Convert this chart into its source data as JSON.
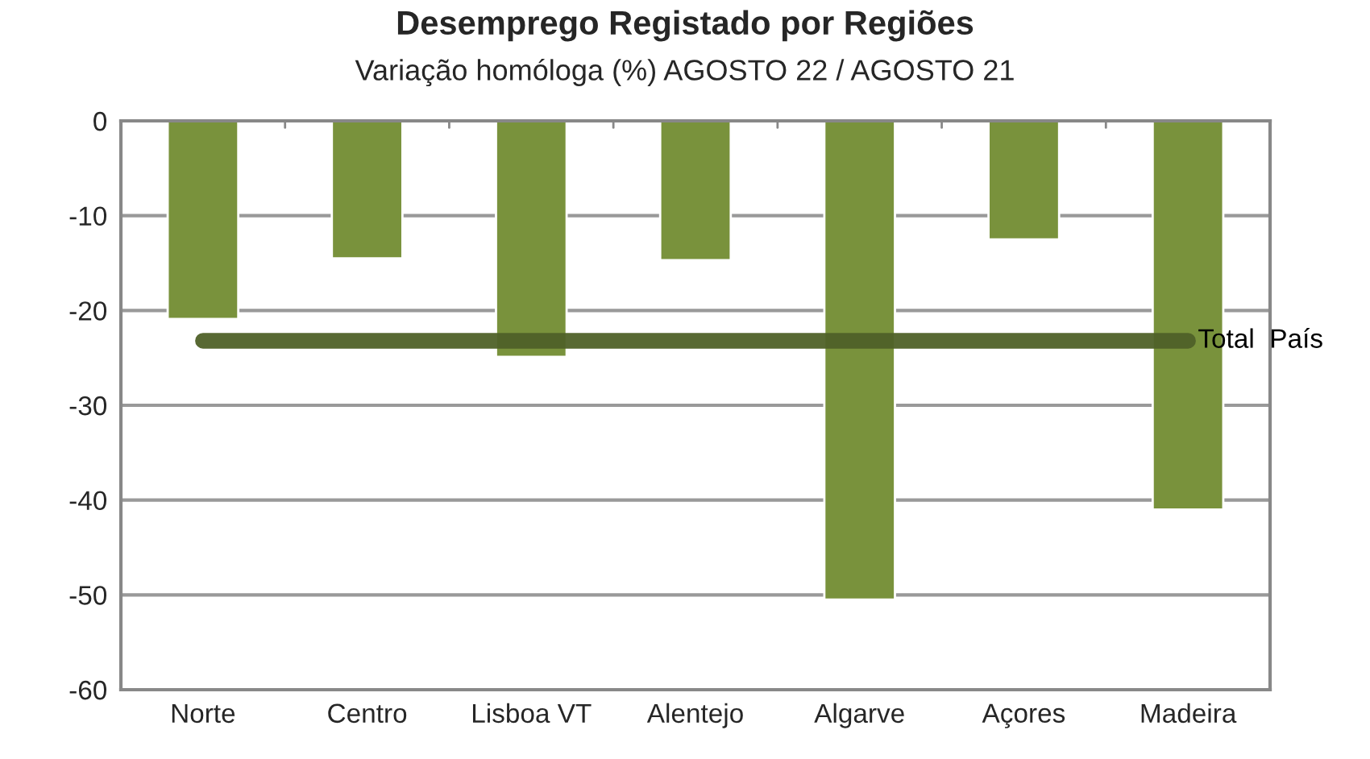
{
  "chart_data": {
    "type": "bar",
    "title": "Desemprego Registado por Regiões",
    "subtitle": "Variação homóloga (%) AGOSTO 22 / AGOSTO 21",
    "categories": [
      "Norte",
      "Centro",
      "Lisboa VT",
      "Alentejo",
      "Algarve",
      "Açores",
      "Madeira"
    ],
    "series": [
      {
        "color": "#79923c",
        "values": [
          -20.9,
          -14.5,
          -24.9,
          -14.7,
          -50.5,
          -12.5,
          -41.0
        ]
      },
      {
        "type": "line",
        "name": "Total  País",
        "color": "#4f6128",
        "values": [
          -23.2,
          -23.2,
          -23.2,
          -23.2,
          -23.2,
          -23.2,
          -23.2
        ]
      }
    ],
    "ylim": [
      -60,
      0
    ],
    "yticks": [
      0,
      -10,
      -20,
      -30,
      -40,
      -50,
      -60
    ],
    "grid": "y",
    "legend": false
  }
}
